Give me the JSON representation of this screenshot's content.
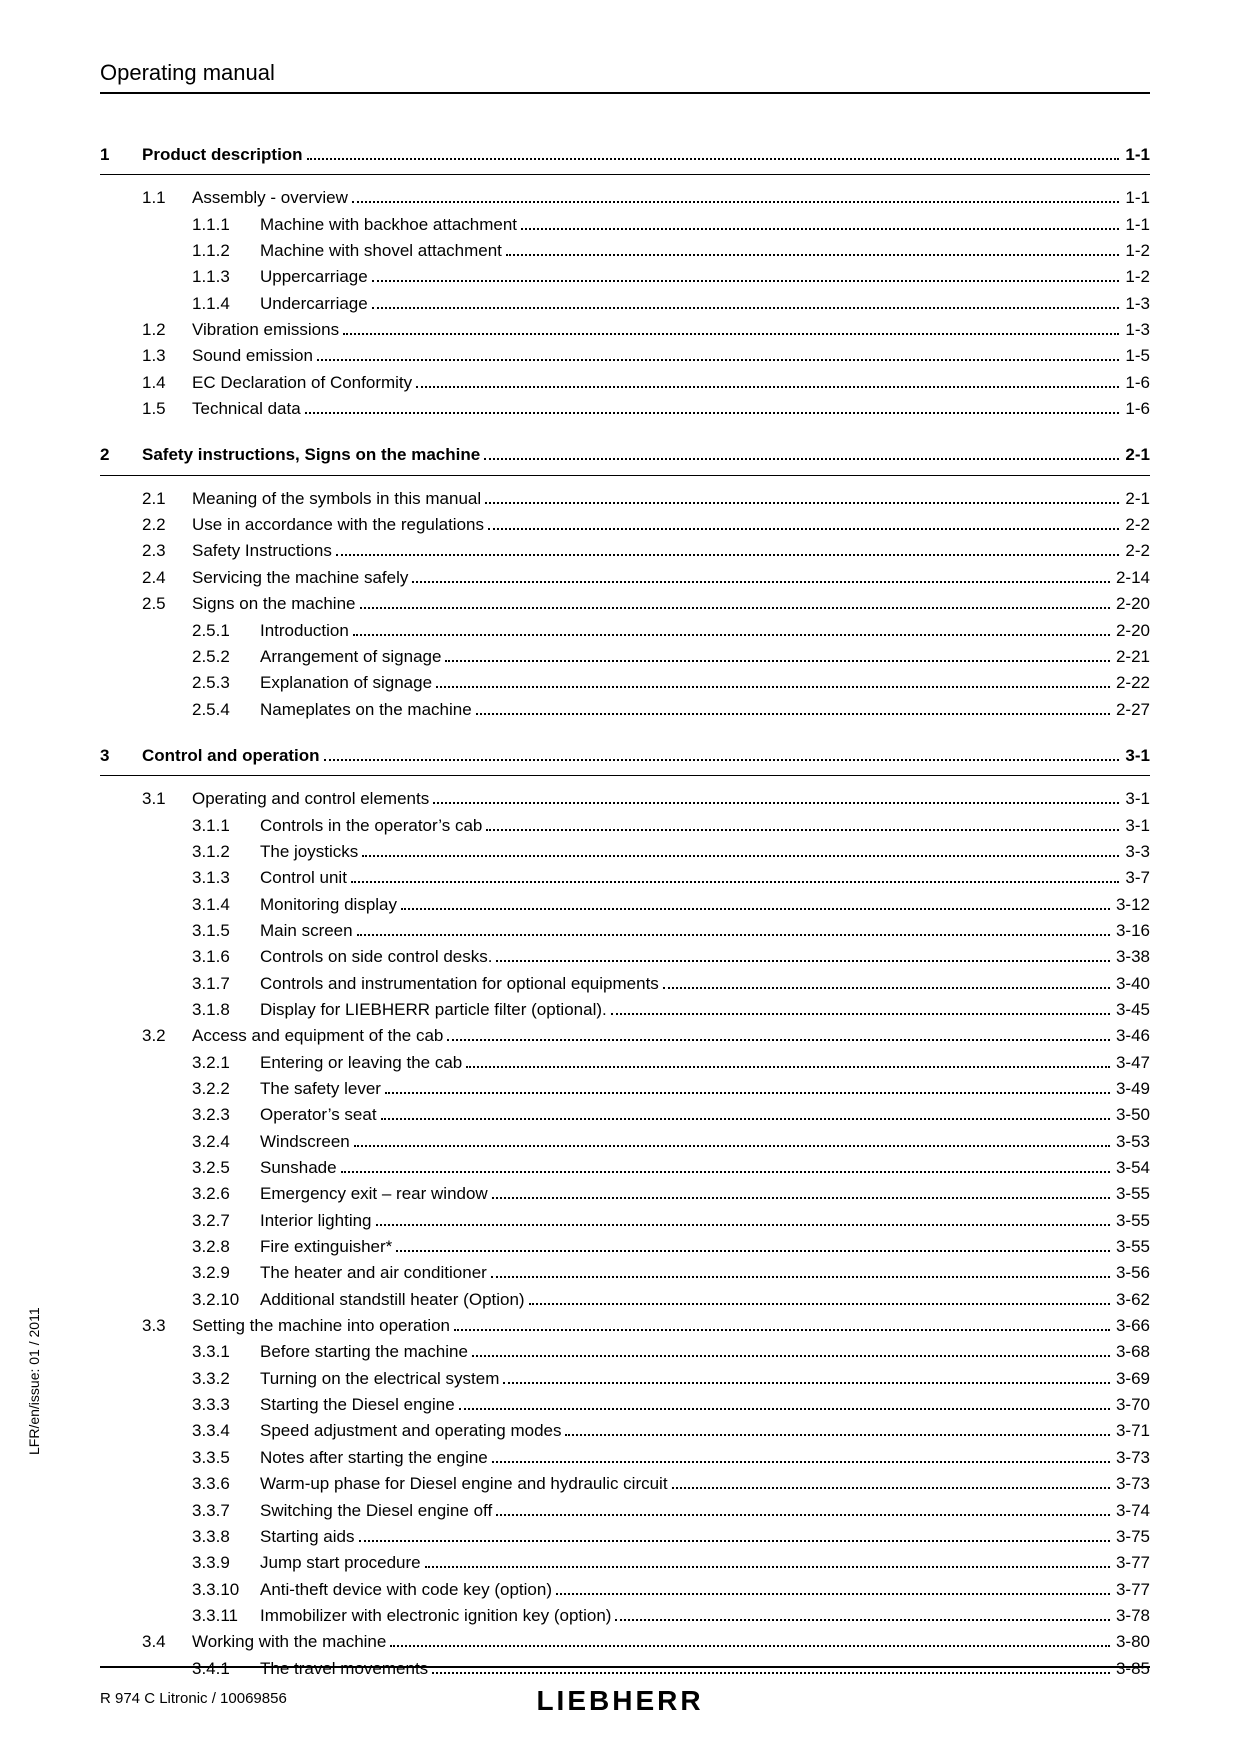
{
  "header_title": "Operating manual",
  "side_text": "LFR/en/issue: 01 / 2011",
  "footer_text": "R 974 C Litronic / 10069856",
  "brand": "LIEBHERR",
  "toc": [
    {
      "num": "1",
      "title": "Product description",
      "page": "1-1",
      "sections": [
        {
          "num": "1.1",
          "title": "Assembly - overview",
          "page": "1-1",
          "subs": [
            {
              "num": "1.1.1",
              "title": "Machine with backhoe attachment",
              "page": "1-1"
            },
            {
              "num": "1.1.2",
              "title": "Machine with shovel attachment ",
              "page": "1-2"
            },
            {
              "num": "1.1.3",
              "title": "Uppercarriage",
              "page": "1-2"
            },
            {
              "num": "1.1.4",
              "title": "Undercarriage",
              "page": "1-3"
            }
          ]
        },
        {
          "num": "1.2",
          "title": "Vibration emissions",
          "page": "1-3"
        },
        {
          "num": "1.3",
          "title": "Sound emission",
          "page": "1-5"
        },
        {
          "num": "1.4",
          "title": "EC Declaration of Conformity",
          "page": "1-6"
        },
        {
          "num": "1.5",
          "title": "Technical data",
          "page": "1-6"
        }
      ]
    },
    {
      "num": "2",
      "title": "Safety instructions, Signs on the machine",
      "page": "2-1",
      "sections": [
        {
          "num": "2.1",
          "title": "Meaning of the symbols in this manual",
          "page": "2-1"
        },
        {
          "num": "2.2",
          "title": "Use in accordance with the regulations",
          "page": "2-2"
        },
        {
          "num": "2.3",
          "title": "Safety Instructions",
          "page": "2-2"
        },
        {
          "num": "2.4",
          "title": "Servicing the machine safely",
          "page": "2-14"
        },
        {
          "num": "2.5",
          "title": "Signs on the machine",
          "page": "2-20",
          "subs": [
            {
              "num": "2.5.1",
              "title": "Introduction",
              "page": "2-20"
            },
            {
              "num": "2.5.2",
              "title": "Arrangement of signage",
              "page": "2-21"
            },
            {
              "num": "2.5.3",
              "title": "Explanation of signage",
              "page": "2-22"
            },
            {
              "num": "2.5.4",
              "title": "Nameplates on the machine",
              "page": "2-27"
            }
          ]
        }
      ]
    },
    {
      "num": "3",
      "title": "Control and operation",
      "page": "3-1",
      "sections": [
        {
          "num": "3.1",
          "title": "Operating and control elements",
          "page": "3-1",
          "subs": [
            {
              "num": "3.1.1",
              "title": "Controls in the operator’s cab",
              "page": "3-1"
            },
            {
              "num": "3.1.2",
              "title": "The joysticks",
              "page": "3-3"
            },
            {
              "num": "3.1.3",
              "title": "Control unit",
              "page": "3-7"
            },
            {
              "num": "3.1.4",
              "title": "Monitoring display",
              "page": "3-12"
            },
            {
              "num": "3.1.5",
              "title": "Main screen",
              "page": "3-16"
            },
            {
              "num": "3.1.6",
              "title": "Controls on side control desks.",
              "page": "3-38"
            },
            {
              "num": "3.1.7",
              "title": "Controls and instrumentation for optional equipments",
              "page": "3-40"
            },
            {
              "num": "3.1.8",
              "title": "Display for LIEBHERR particle filter (optional).",
              "page": "3-45"
            }
          ]
        },
        {
          "num": "3.2",
          "title": "Access and equipment of the cab",
          "page": "3-46",
          "subs": [
            {
              "num": "3.2.1",
              "title": "Entering or leaving the cab",
              "page": "3-47"
            },
            {
              "num": "3.2.2",
              "title": "The safety lever",
              "page": "3-49"
            },
            {
              "num": "3.2.3",
              "title": "Operator’s seat",
              "page": "3-50"
            },
            {
              "num": "3.2.4",
              "title": "Windscreen",
              "page": "3-53"
            },
            {
              "num": "3.2.5",
              "title": "Sunshade",
              "page": "3-54"
            },
            {
              "num": "3.2.6",
              "title": "Emergency exit – rear window",
              "page": "3-55"
            },
            {
              "num": "3.2.7",
              "title": "Interior lighting",
              "page": "3-55"
            },
            {
              "num": "3.2.8",
              "title": "Fire extinguisher*",
              "page": "3-55"
            },
            {
              "num": "3.2.9",
              "title": "The heater and air conditioner",
              "page": "3-56"
            },
            {
              "num": "3.2.10",
              "title": "Additional standstill heater (Option)",
              "page": "3-62"
            }
          ]
        },
        {
          "num": "3.3",
          "title": "Setting the machine into operation",
          "page": "3-66",
          "subs": [
            {
              "num": "3.3.1",
              "title": "Before starting the machine",
              "page": "3-68"
            },
            {
              "num": "3.3.2",
              "title": "Turning on the electrical system",
              "page": "3-69"
            },
            {
              "num": "3.3.3",
              "title": "Starting the Diesel engine",
              "page": "3-70"
            },
            {
              "num": "3.3.4",
              "title": "Speed adjustment and operating modes",
              "page": "3-71"
            },
            {
              "num": "3.3.5",
              "title": "Notes after starting the engine",
              "page": "3-73"
            },
            {
              "num": "3.3.6",
              "title": "Warm-up phase for Diesel engine and hydraulic circuit",
              "page": "3-73"
            },
            {
              "num": "3.3.7",
              "title": "Switching the Diesel engine off",
              "page": "3-74"
            },
            {
              "num": "3.3.8",
              "title": "Starting aids",
              "page": "3-75"
            },
            {
              "num": "3.3.9",
              "title": "Jump start procedure",
              "page": "3-77"
            },
            {
              "num": "3.3.10",
              "title": "Anti-theft device with code key (option)",
              "page": "3-77"
            },
            {
              "num": "3.3.11",
              "title": "Immobilizer with electronic ignition key (option)",
              "page": "3-78"
            }
          ]
        },
        {
          "num": "3.4",
          "title": "Working with the machine",
          "page": "3-80",
          "subs": [
            {
              "num": "3.4.1",
              "title": "The travel movements",
              "page": "3-85"
            }
          ]
        }
      ]
    }
  ]
}
